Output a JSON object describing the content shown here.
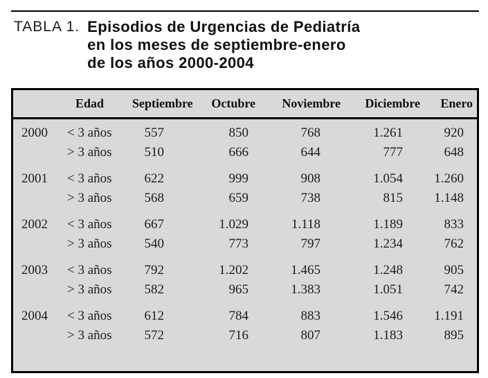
{
  "caption": {
    "label": "TABLA 1.",
    "title_lines": [
      "Episodios de Urgencias de Pediatría",
      "en los meses de septiembre-enero",
      "de los años 2000-2004"
    ]
  },
  "table": {
    "headers": {
      "edad": "Edad",
      "months": [
        "Septiembre",
        "Octubre",
        "Noviembre",
        "Diciembre",
        "Enero"
      ]
    },
    "groups": [
      {
        "year": "2000",
        "rows": [
          {
            "edad": "< 3 años",
            "values": [
              "557",
              "850",
              "768",
              "1.261",
              "920"
            ]
          },
          {
            "edad": "> 3 años",
            "values": [
              "510",
              "666",
              "644",
              "777",
              "648"
            ]
          }
        ]
      },
      {
        "year": "2001",
        "rows": [
          {
            "edad": "< 3 años",
            "values": [
              "622",
              "999",
              "908",
              "1.054",
              "1.260"
            ]
          },
          {
            "edad": "> 3 años",
            "values": [
              "568",
              "659",
              "738",
              "815",
              "1.148"
            ]
          }
        ]
      },
      {
        "year": "2002",
        "rows": [
          {
            "edad": "< 3 años",
            "values": [
              "667",
              "1.029",
              "1.118",
              "1.189",
              "833"
            ]
          },
          {
            "edad": "> 3 años",
            "values": [
              "540",
              "773",
              "797",
              "1.234",
              "762"
            ]
          }
        ]
      },
      {
        "year": "2003",
        "rows": [
          {
            "edad": "< 3 años",
            "values": [
              "792",
              "1.202",
              "1.465",
              "1.248",
              "905"
            ]
          },
          {
            "edad": "> 3 años",
            "values": [
              "582",
              "965",
              "1.383",
              "1.051",
              "742"
            ]
          }
        ]
      },
      {
        "year": "2004",
        "rows": [
          {
            "edad": "< 3 años",
            "values": [
              "612",
              "784",
              "883",
              "1.546",
              "1.191"
            ]
          },
          {
            "edad": "> 3 años",
            "values": [
              "572",
              "716",
              "807",
              "1.183",
              "895"
            ]
          }
        ]
      }
    ]
  },
  "colors": {
    "panel_bg": "#d9d9d9",
    "border": "#000000",
    "text": "#1a1a1a"
  }
}
